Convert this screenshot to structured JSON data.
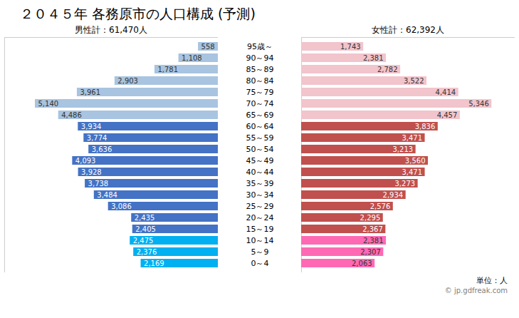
{
  "chart_data": {
    "type": "bar",
    "orientation": "horizontal",
    "title": "２０４５年 各務原市の人口構成 (予測)",
    "categories": [
      "0～4",
      "5～9",
      "10～14",
      "15～19",
      "20～24",
      "25～29",
      "30～34",
      "35～39",
      "40～44",
      "45～49",
      "50～54",
      "55～59",
      "60～64",
      "65～69",
      "70～74",
      "75～79",
      "80～84",
      "85～89",
      "90～94",
      "95歳～"
    ],
    "series": [
      {
        "name": "男性計：61,470人",
        "colors": [
          "#00b0f0",
          "#00b0f0",
          "#00b0f0",
          "#4472c4",
          "#4472c4",
          "#4472c4",
          "#4472c4",
          "#4472c4",
          "#4472c4",
          "#4472c4",
          "#4472c4",
          "#4472c4",
          "#4472c4",
          "#a8c4e0",
          "#a8c4e0",
          "#a8c4e0",
          "#a8c4e0",
          "#a8c4e0",
          "#a8c4e0",
          "#a8c4e0"
        ],
        "values": [
          2169,
          2376,
          2475,
          2405,
          2435,
          3086,
          3484,
          3738,
          3928,
          4093,
          3636,
          3774,
          3934,
          4486,
          5140,
          3961,
          2903,
          1781,
          1108,
          558
        ],
        "value_labels": [
          "2,169",
          "2,376",
          "2,475",
          "2,405",
          "2,435",
          "3,086",
          "3,484",
          "3,738",
          "3,928",
          "4,093",
          "3,636",
          "3,774",
          "3,934",
          "4,486",
          "5,140",
          "3,961",
          "2,903",
          "1,781",
          "1,108",
          "558"
        ]
      },
      {
        "name": "女性計：62,392人",
        "colors": [
          "#ff69b4",
          "#ff69b4",
          "#ff69b4",
          "#c0504d",
          "#c0504d",
          "#c0504d",
          "#c0504d",
          "#c0504d",
          "#c0504d",
          "#c0504d",
          "#c0504d",
          "#c0504d",
          "#c0504d",
          "#f2c4cc",
          "#f2c4cc",
          "#f2c4cc",
          "#f2c4cc",
          "#f2c4cc",
          "#f2c4cc",
          "#f2c4cc"
        ],
        "values": [
          2063,
          2307,
          2381,
          2367,
          2295,
          2576,
          2934,
          3273,
          3471,
          3560,
          3213,
          3471,
          3836,
          4457,
          5346,
          4414,
          3522,
          2782,
          2381,
          1743
        ],
        "value_labels": [
          "2,063",
          "2,307",
          "2,381",
          "2,367",
          "2,295",
          "2,576",
          "2,934",
          "3,273",
          "3,471",
          "3,560",
          "3,213",
          "3,471",
          "3,836",
          "4,457",
          "5,346",
          "4,414",
          "3,522",
          "2,782",
          "2,381",
          "1,743"
        ]
      }
    ],
    "xlim": [
      0,
      6000
    ],
    "tick_labels": false,
    "data_labels": true,
    "annotations": [
      "単位：人",
      "© jp.gdfreak.com"
    ]
  }
}
